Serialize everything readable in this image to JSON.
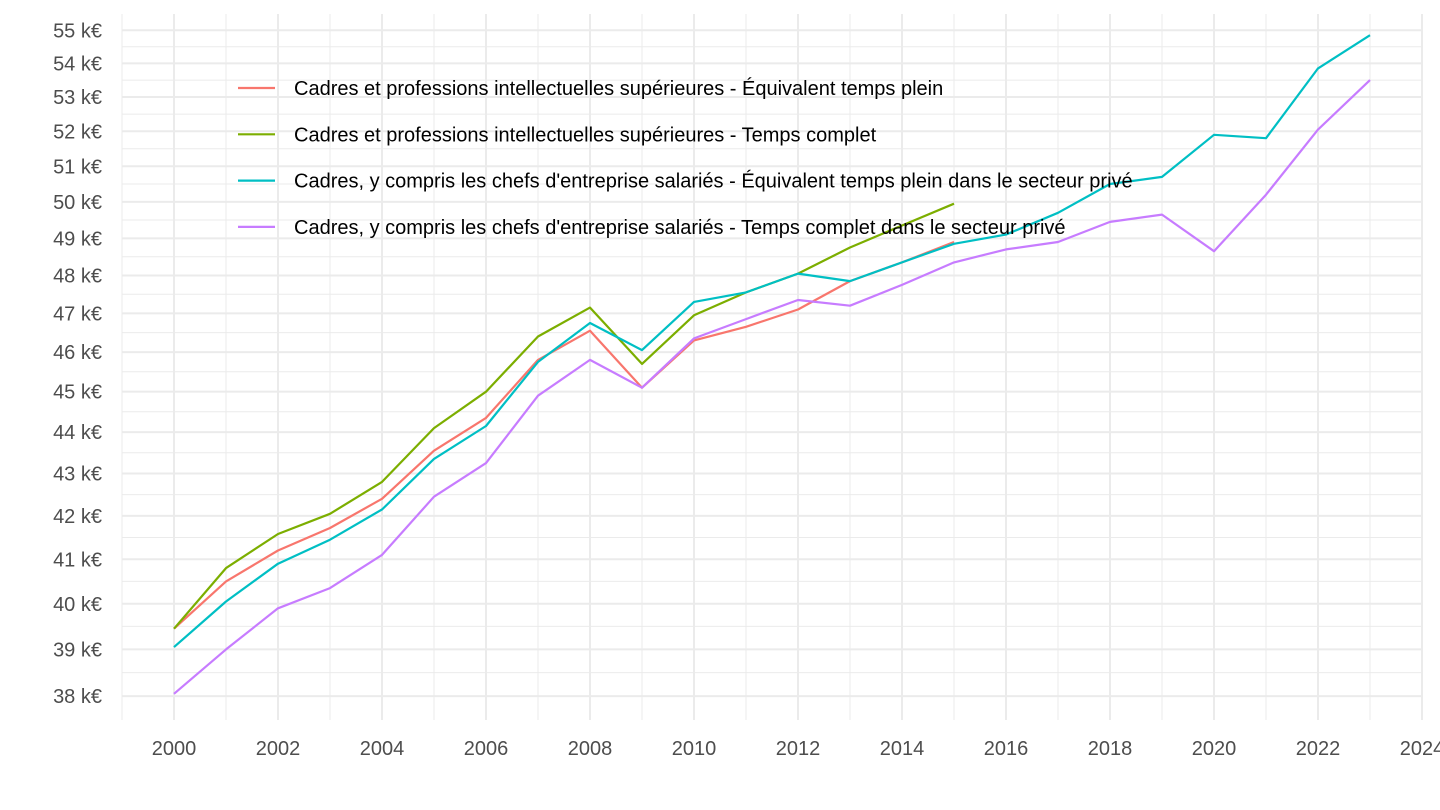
{
  "chart_data": {
    "type": "line",
    "title": "",
    "xlabel": "",
    "ylabel": "",
    "y_scale": "log",
    "xlim": [
      1999,
      2024
    ],
    "ylim": [
      37.5,
      55.5
    ],
    "grid": true,
    "legend_position": "top-left inside",
    "x_ticks": [
      2000,
      2002,
      2004,
      2006,
      2008,
      2010,
      2012,
      2014,
      2016,
      2018,
      2020,
      2022,
      2024
    ],
    "y_ticks": [
      {
        "value": 38,
        "label": "38 k€"
      },
      {
        "value": 39,
        "label": "39 k€"
      },
      {
        "value": 40,
        "label": "40 k€"
      },
      {
        "value": 41,
        "label": "41 k€"
      },
      {
        "value": 42,
        "label": "42 k€"
      },
      {
        "value": 43,
        "label": "43 k€"
      },
      {
        "value": 44,
        "label": "44 k€"
      },
      {
        "value": 45,
        "label": "45 k€"
      },
      {
        "value": 46,
        "label": "46 k€"
      },
      {
        "value": 47,
        "label": "47 k€"
      },
      {
        "value": 48,
        "label": "48 k€"
      },
      {
        "value": 49,
        "label": "49 k€"
      },
      {
        "value": 50,
        "label": "50 k€"
      },
      {
        "value": 51,
        "label": "51 k€"
      },
      {
        "value": 52,
        "label": "52 k€"
      },
      {
        "value": 53,
        "label": "53 k€"
      },
      {
        "value": 54,
        "label": "54 k€"
      },
      {
        "value": 55,
        "label": "55 k€"
      }
    ],
    "series": [
      {
        "name": "Cadres et professions intellectuelles supérieures - Équivalent temps plein",
        "color": "#F8766D",
        "x": [
          2000,
          2001,
          2002,
          2003,
          2004,
          2005,
          2006,
          2007,
          2008,
          2009,
          2010,
          2011,
          2012,
          2013,
          2014,
          2015
        ],
        "y": [
          39.45,
          40.5,
          41.2,
          41.72,
          42.4,
          43.55,
          44.35,
          45.8,
          46.55,
          45.1,
          46.3,
          46.65,
          47.1,
          47.85,
          48.35,
          48.9
        ]
      },
      {
        "name": "Cadres et professions intellectuelles supérieures - Temps complet",
        "color": "#7CAE00",
        "x": [
          2000,
          2001,
          2002,
          2003,
          2004,
          2005,
          2006,
          2007,
          2008,
          2009,
          2010,
          2011,
          2012,
          2013,
          2014,
          2015
        ],
        "y": [
          39.45,
          40.8,
          41.58,
          42.05,
          42.8,
          44.1,
          45.0,
          46.4,
          47.15,
          45.7,
          46.95,
          47.55,
          48.05,
          48.75,
          49.35,
          49.95
        ]
      },
      {
        "name": "Cadres, y compris les chefs d'entreprise salariés - Équivalent temps plein dans le secteur privé",
        "color": "#00BFC4",
        "x": [
          2000,
          2001,
          2002,
          2003,
          2004,
          2005,
          2006,
          2007,
          2008,
          2009,
          2010,
          2011,
          2012,
          2013,
          2014,
          2015,
          2016,
          2017,
          2018,
          2019,
          2020,
          2021,
          2022,
          2023
        ],
        "y": [
          39.05,
          40.05,
          40.9,
          41.45,
          42.15,
          43.35,
          44.15,
          45.75,
          46.75,
          46.05,
          47.3,
          47.55,
          48.05,
          47.85,
          48.35,
          48.85,
          49.1,
          49.7,
          50.5,
          50.7,
          51.9,
          51.8,
          53.85,
          54.85
        ]
      },
      {
        "name": "Cadres, y compris les chefs d'entreprise salariés - Temps complet dans le secteur privé",
        "color": "#C77CFF",
        "x": [
          2000,
          2001,
          2002,
          2003,
          2004,
          2005,
          2006,
          2007,
          2008,
          2009,
          2010,
          2011,
          2012,
          2013,
          2014,
          2015,
          2016,
          2017,
          2018,
          2019,
          2020,
          2021,
          2022,
          2023
        ],
        "y": [
          38.05,
          39.0,
          39.9,
          40.35,
          41.1,
          42.45,
          43.25,
          44.9,
          45.8,
          45.1,
          46.35,
          46.85,
          47.35,
          47.2,
          47.75,
          48.35,
          48.7,
          48.9,
          49.45,
          49.65,
          48.65,
          50.2,
          52.05,
          53.5
        ]
      }
    ]
  }
}
